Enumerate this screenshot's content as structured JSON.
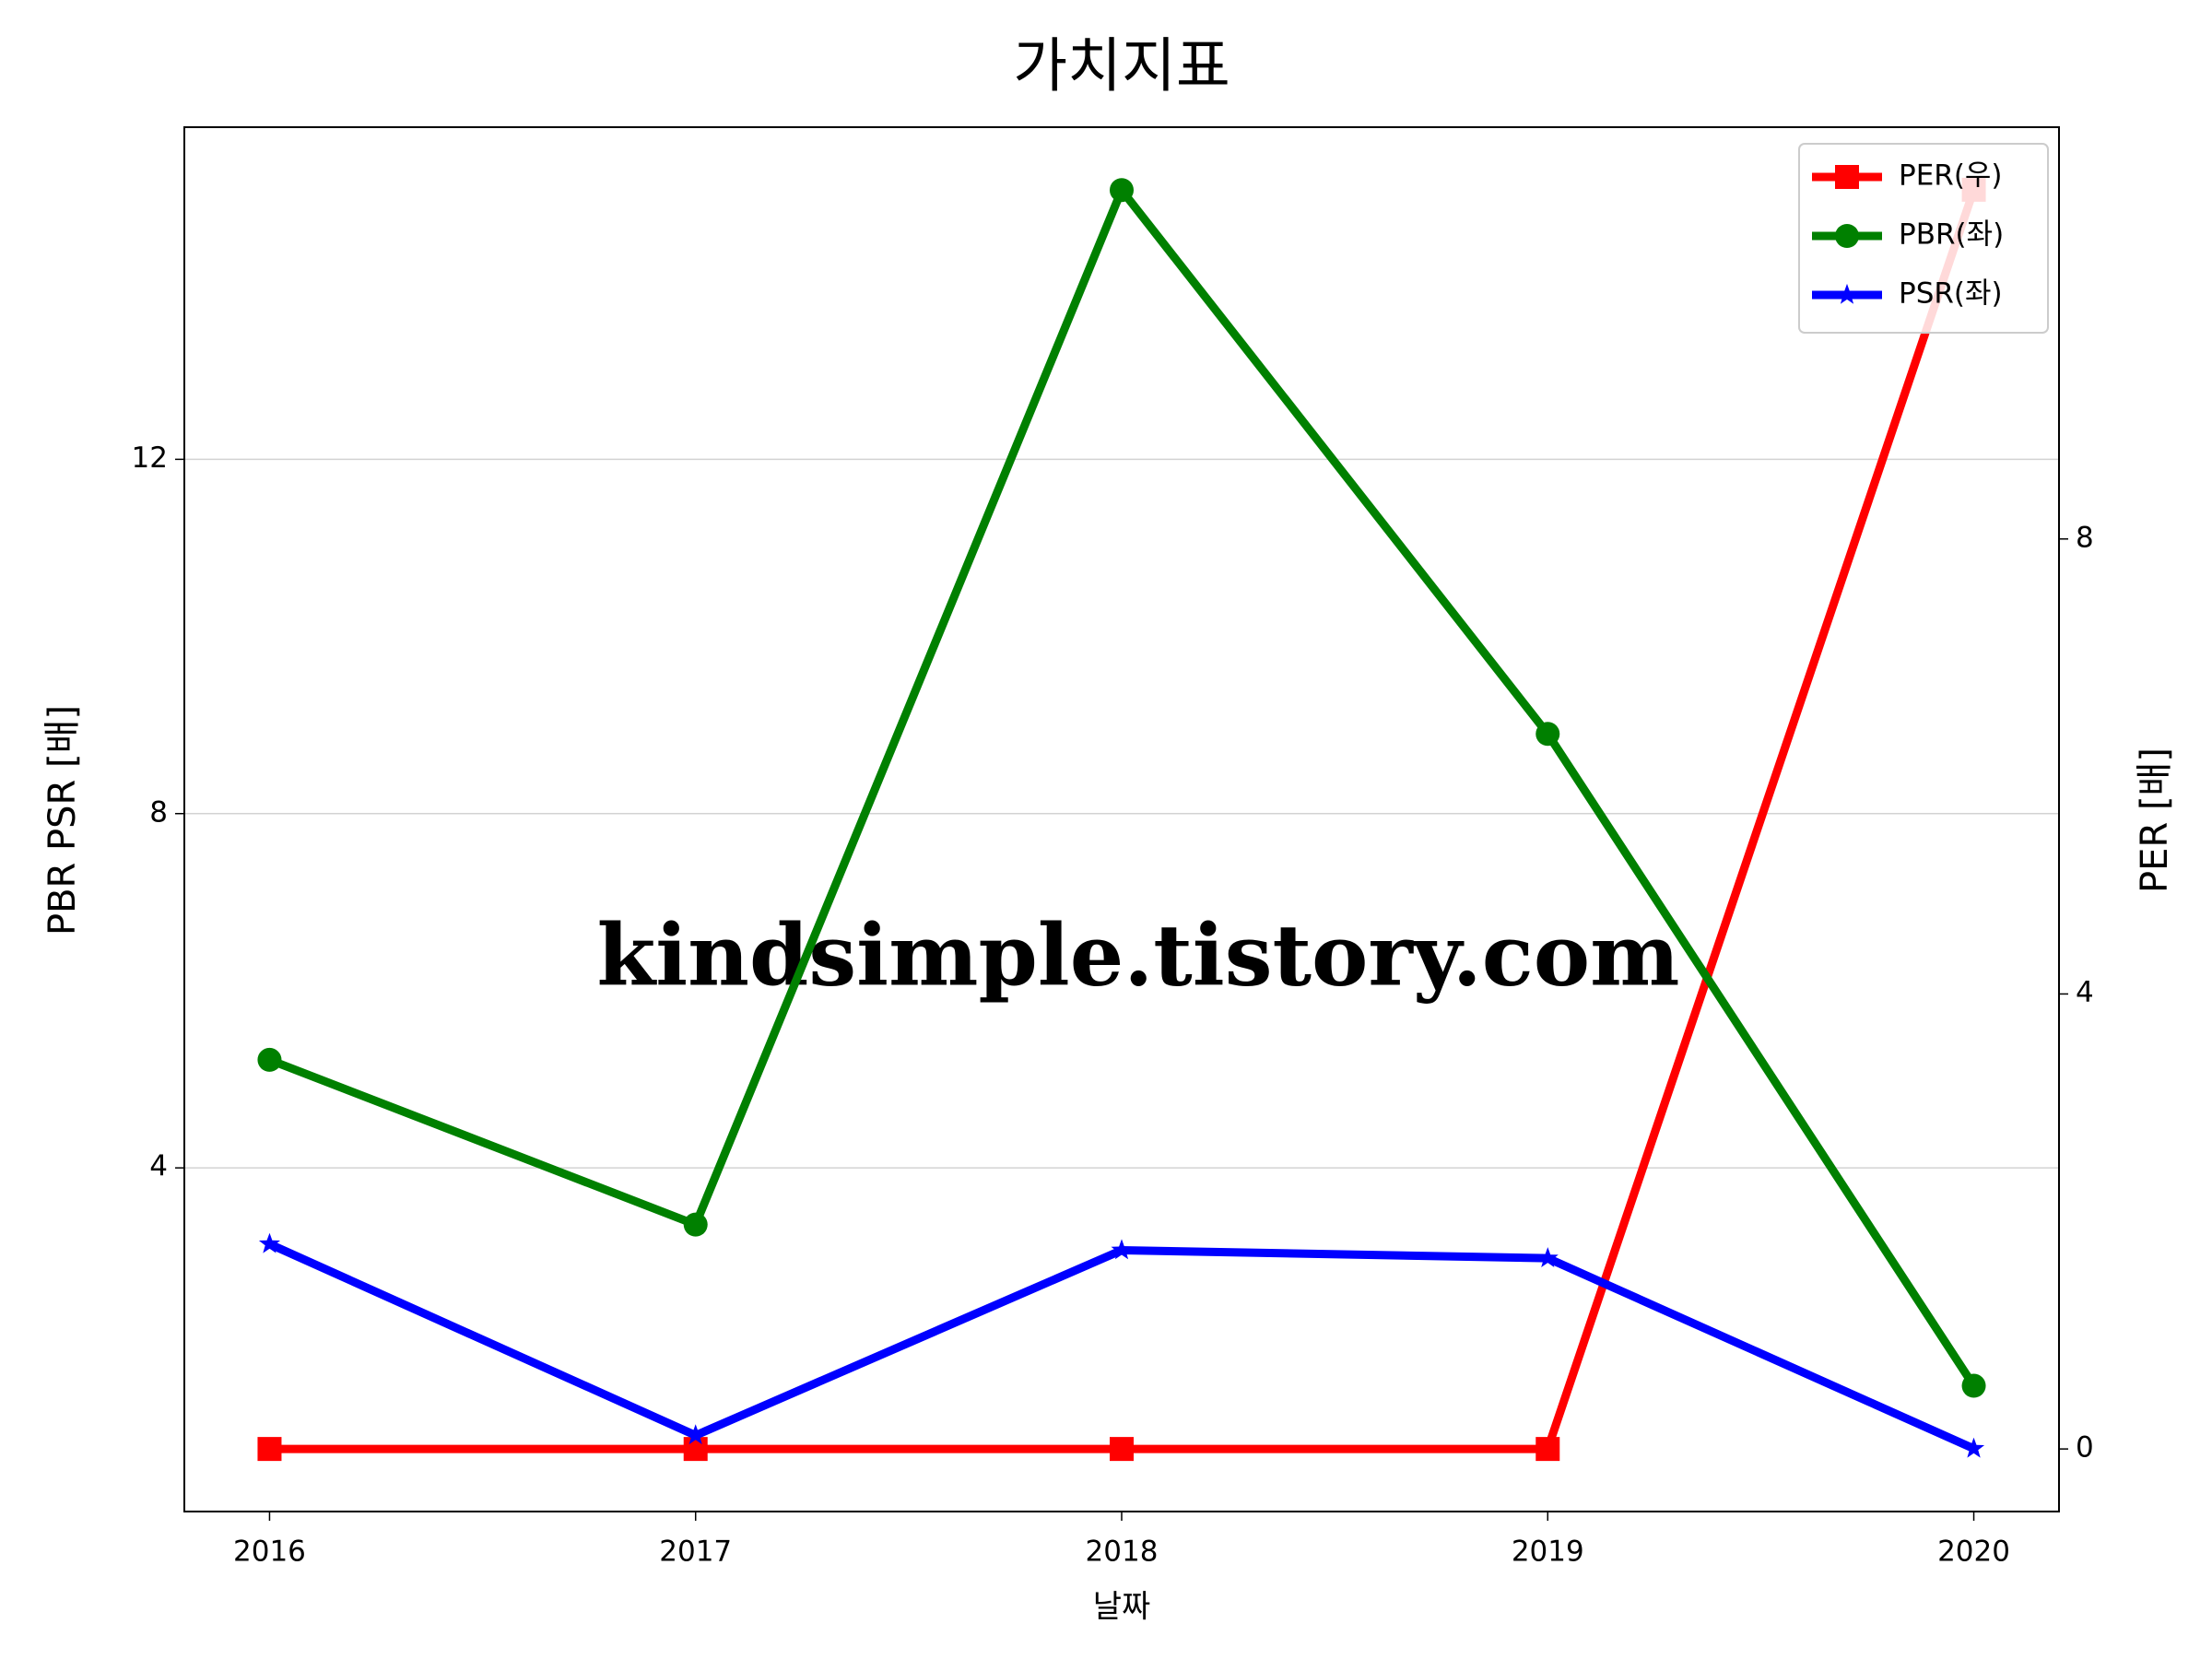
{
  "chart_data": {
    "type": "line",
    "title": "가치지표",
    "xlabel": "날짜",
    "ylabel": "PBR PSR [배]",
    "y2label": "PER [배]",
    "ylabel_color": "#008000",
    "y2label_color": "#ff0000",
    "watermark": "kindsimple.tistory.com",
    "x": [
      2016,
      2017,
      2018,
      2019,
      2020
    ],
    "xlim": [
      2015.8,
      2020.2
    ],
    "xticks": [
      2016,
      2017,
      2018,
      2019,
      2020
    ],
    "ylim": [
      0.12,
      15.75
    ],
    "yticks": [
      4,
      8,
      12
    ],
    "y2lim": [
      -0.55,
      11.62
    ],
    "y2ticks": [
      0,
      4,
      8
    ],
    "grid": true,
    "legend": "upper right",
    "series": [
      {
        "name": "PER(우)",
        "color": "#ff0000",
        "marker": "square",
        "axis": "y2",
        "values": [
          0,
          0,
          0,
          0,
          11.07
        ]
      },
      {
        "name": "PBR(좌)",
        "color": "#008000",
        "marker": "circle",
        "values": [
          5.22,
          3.36,
          15.04,
          8.9,
          1.54
        ]
      },
      {
        "name": "PSR(좌)",
        "color": "#0000ff",
        "marker": "star",
        "values": [
          3.14,
          0.98,
          3.07,
          2.98,
          0.83
        ]
      }
    ]
  }
}
